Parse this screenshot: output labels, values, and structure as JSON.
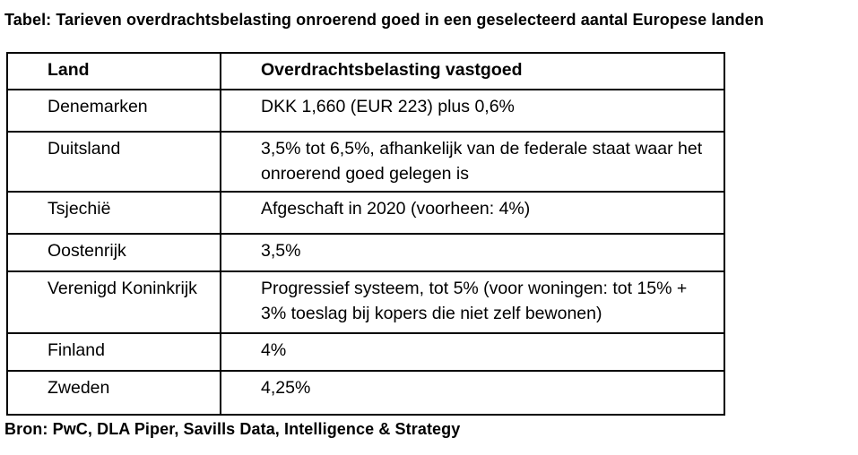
{
  "title": "Tabel: Tarieven overdrachtsbelasting onroerend goed in een geselecteerd aantal Europese landen",
  "table": {
    "columns": {
      "land": "Land",
      "tax": "Overdrachtsbelasting vastgoed"
    },
    "rows": [
      {
        "land": "Denemarken",
        "tax": "DKK 1,660 (EUR 223) plus 0,6%"
      },
      {
        "land": "Duitsland",
        "tax": "3,5% tot 6,5%, afhankelijk van de federale staat waar het\nonroerend goed gelegen is"
      },
      {
        "land": "Tsjechië",
        "tax": "Afgeschaft in 2020 (voorheen: 4%)"
      },
      {
        "land": "Oostenrijk",
        "tax": "3,5%"
      },
      {
        "land": "Verenigd Koninkrijk",
        "tax": "Progressief systeem, tot 5% (voor woningen: tot 15% +\n3% toeslag bij kopers die niet zelf bewonen)"
      },
      {
        "land": "Finland",
        "tax": "4%"
      },
      {
        "land": "Zweden",
        "tax": "4,25%"
      }
    ]
  },
  "source": "Bron: PwC, DLA Piper, Savills Data, Intelligence & Strategy",
  "colors": {
    "text": "#000000",
    "background": "#ffffff",
    "border": "#000000"
  }
}
